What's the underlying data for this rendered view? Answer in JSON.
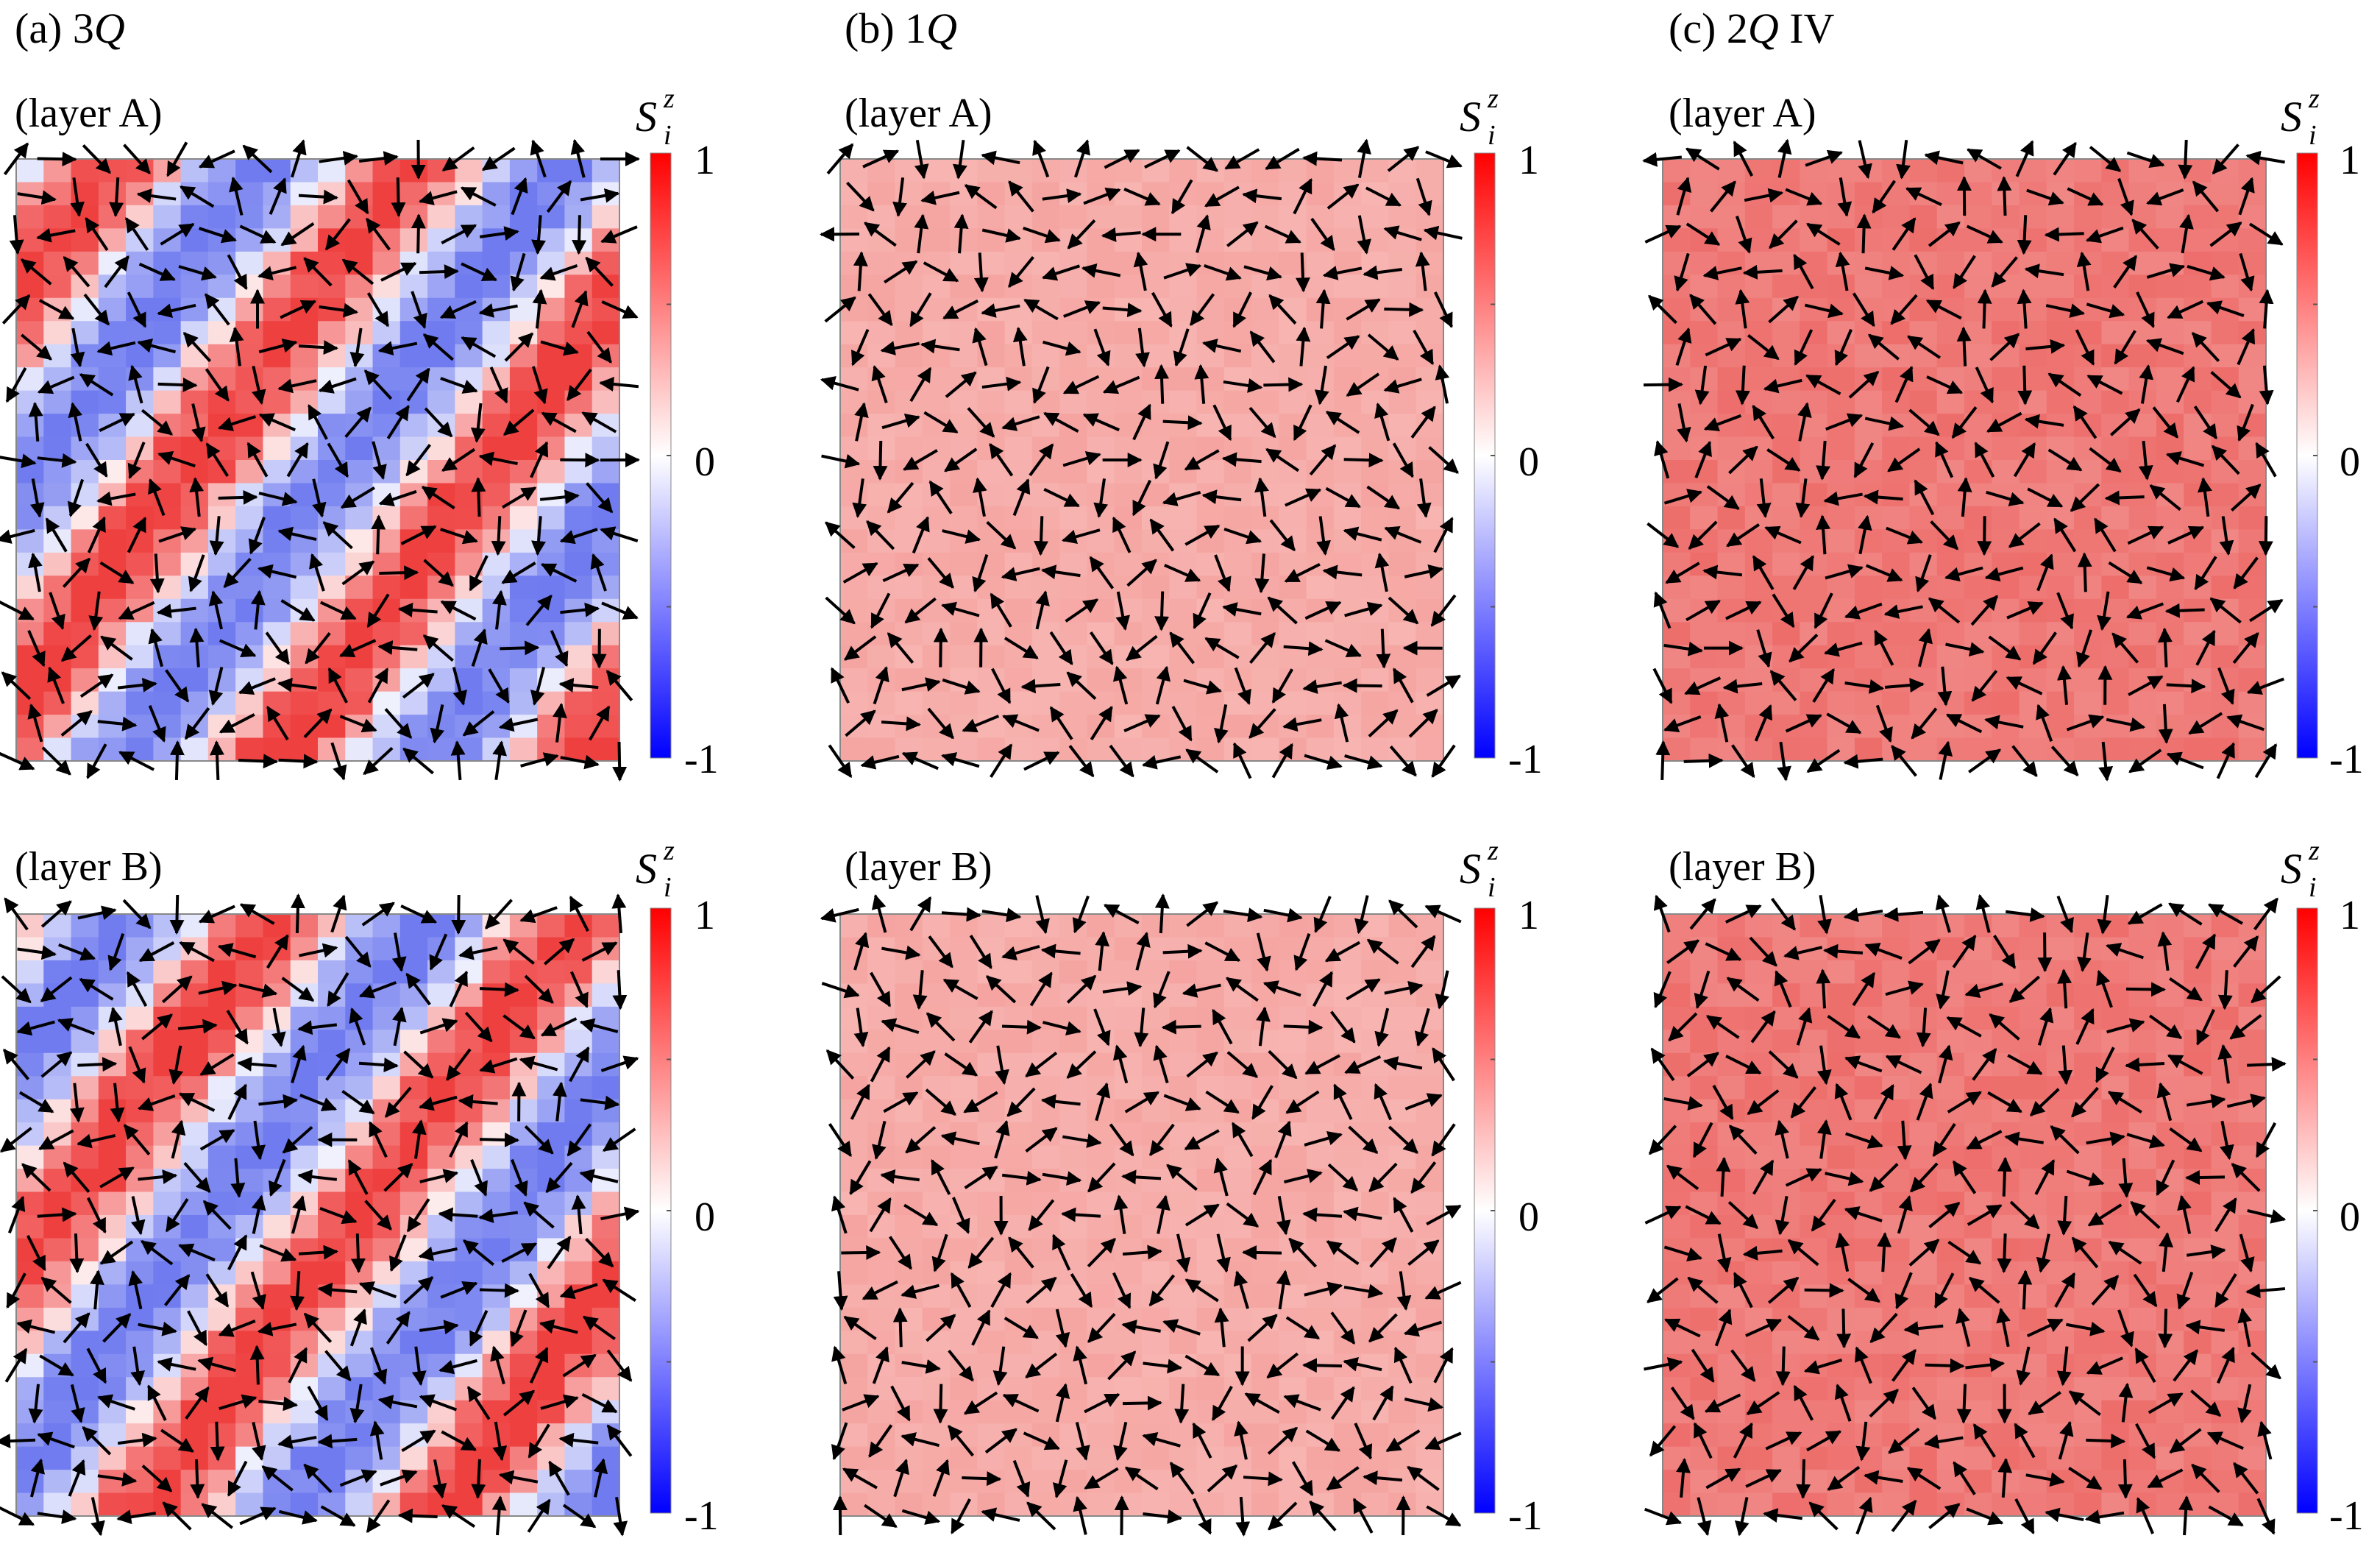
{
  "figure": {
    "columns": [
      {
        "label": "(a)",
        "name_parts": [
          "3",
          "Q",
          ""
        ],
        "texture": "stripes",
        "red_color": "#ef4040",
        "blue_color": "#6f7bef",
        "panels": [
          {
            "layer_label": "(layer A)",
            "seed": 11
          },
          {
            "layer_label": "(layer B)",
            "seed": 23
          }
        ]
      },
      {
        "label": "(b)",
        "name_parts": [
          "1",
          "Q",
          ""
        ],
        "texture": "uniform",
        "red_color": "#f49a96",
        "panels": [
          {
            "layer_label": "(layer A)",
            "seed": 37
          },
          {
            "layer_label": "(layer B)",
            "seed": 41
          }
        ]
      },
      {
        "label": "(c)",
        "name_parts": [
          "2",
          "Q",
          " IV"
        ],
        "texture": "uniform",
        "red_color": "#eb5d5a",
        "panels": [
          {
            "layer_label": "(layer A)",
            "seed": 53
          },
          {
            "layer_label": "(layer B)",
            "seed": 67
          }
        ]
      }
    ],
    "colorbar": {
      "symbol": "S",
      "superscript": "z",
      "subscript": "i",
      "ticks": [
        "1",
        "0",
        "-1"
      ],
      "colors": {
        "top": "#ff0000",
        "middle": "#ffffff",
        "bottom": "#0000ff"
      },
      "range": [
        -1,
        1
      ]
    },
    "arrow_color": "#000000",
    "frame_color": "#888888"
  }
}
